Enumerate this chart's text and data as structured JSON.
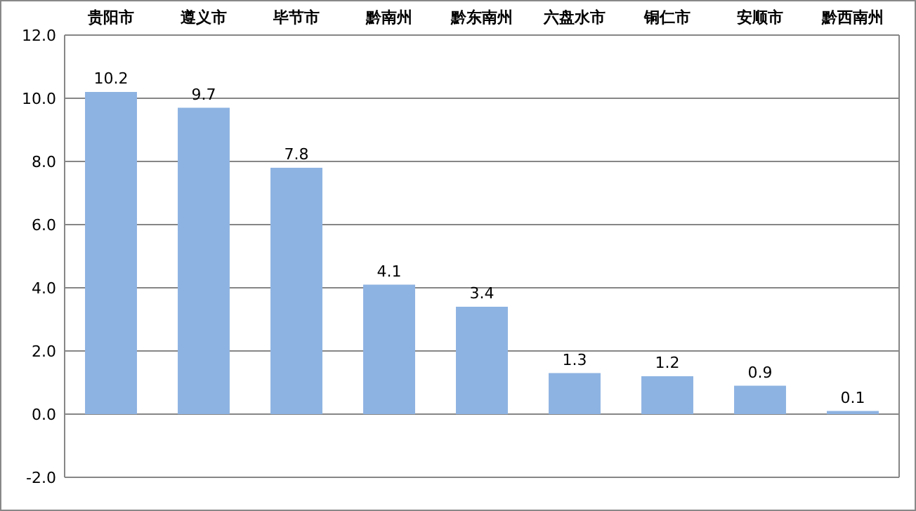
{
  "chart_data": {
    "type": "bar",
    "categories": [
      "贵阳市",
      "遵义市",
      "毕节市",
      "黔南州",
      "黔东南州",
      "六盘水市",
      "铜仁市",
      "安顺市",
      "黔西南州"
    ],
    "values": [
      10.2,
      9.7,
      7.8,
      4.1,
      3.4,
      1.3,
      1.2,
      0.9,
      0.1
    ],
    "color": "#8db3e2",
    "ylim": [
      -2,
      12
    ],
    "yticks": [
      {
        "value": -2,
        "label": "-2.0"
      },
      {
        "value": 0,
        "label": "0.0"
      },
      {
        "value": 2,
        "label": "2.0"
      },
      {
        "value": 4,
        "label": "4.0"
      },
      {
        "value": 6,
        "label": "6.0"
      },
      {
        "value": 8,
        "label": "8.0"
      },
      {
        "value": 10,
        "label": "10.0"
      },
      {
        "value": 12,
        "label": "12.0"
      }
    ],
    "grid": "y",
    "data_labels": true
  }
}
